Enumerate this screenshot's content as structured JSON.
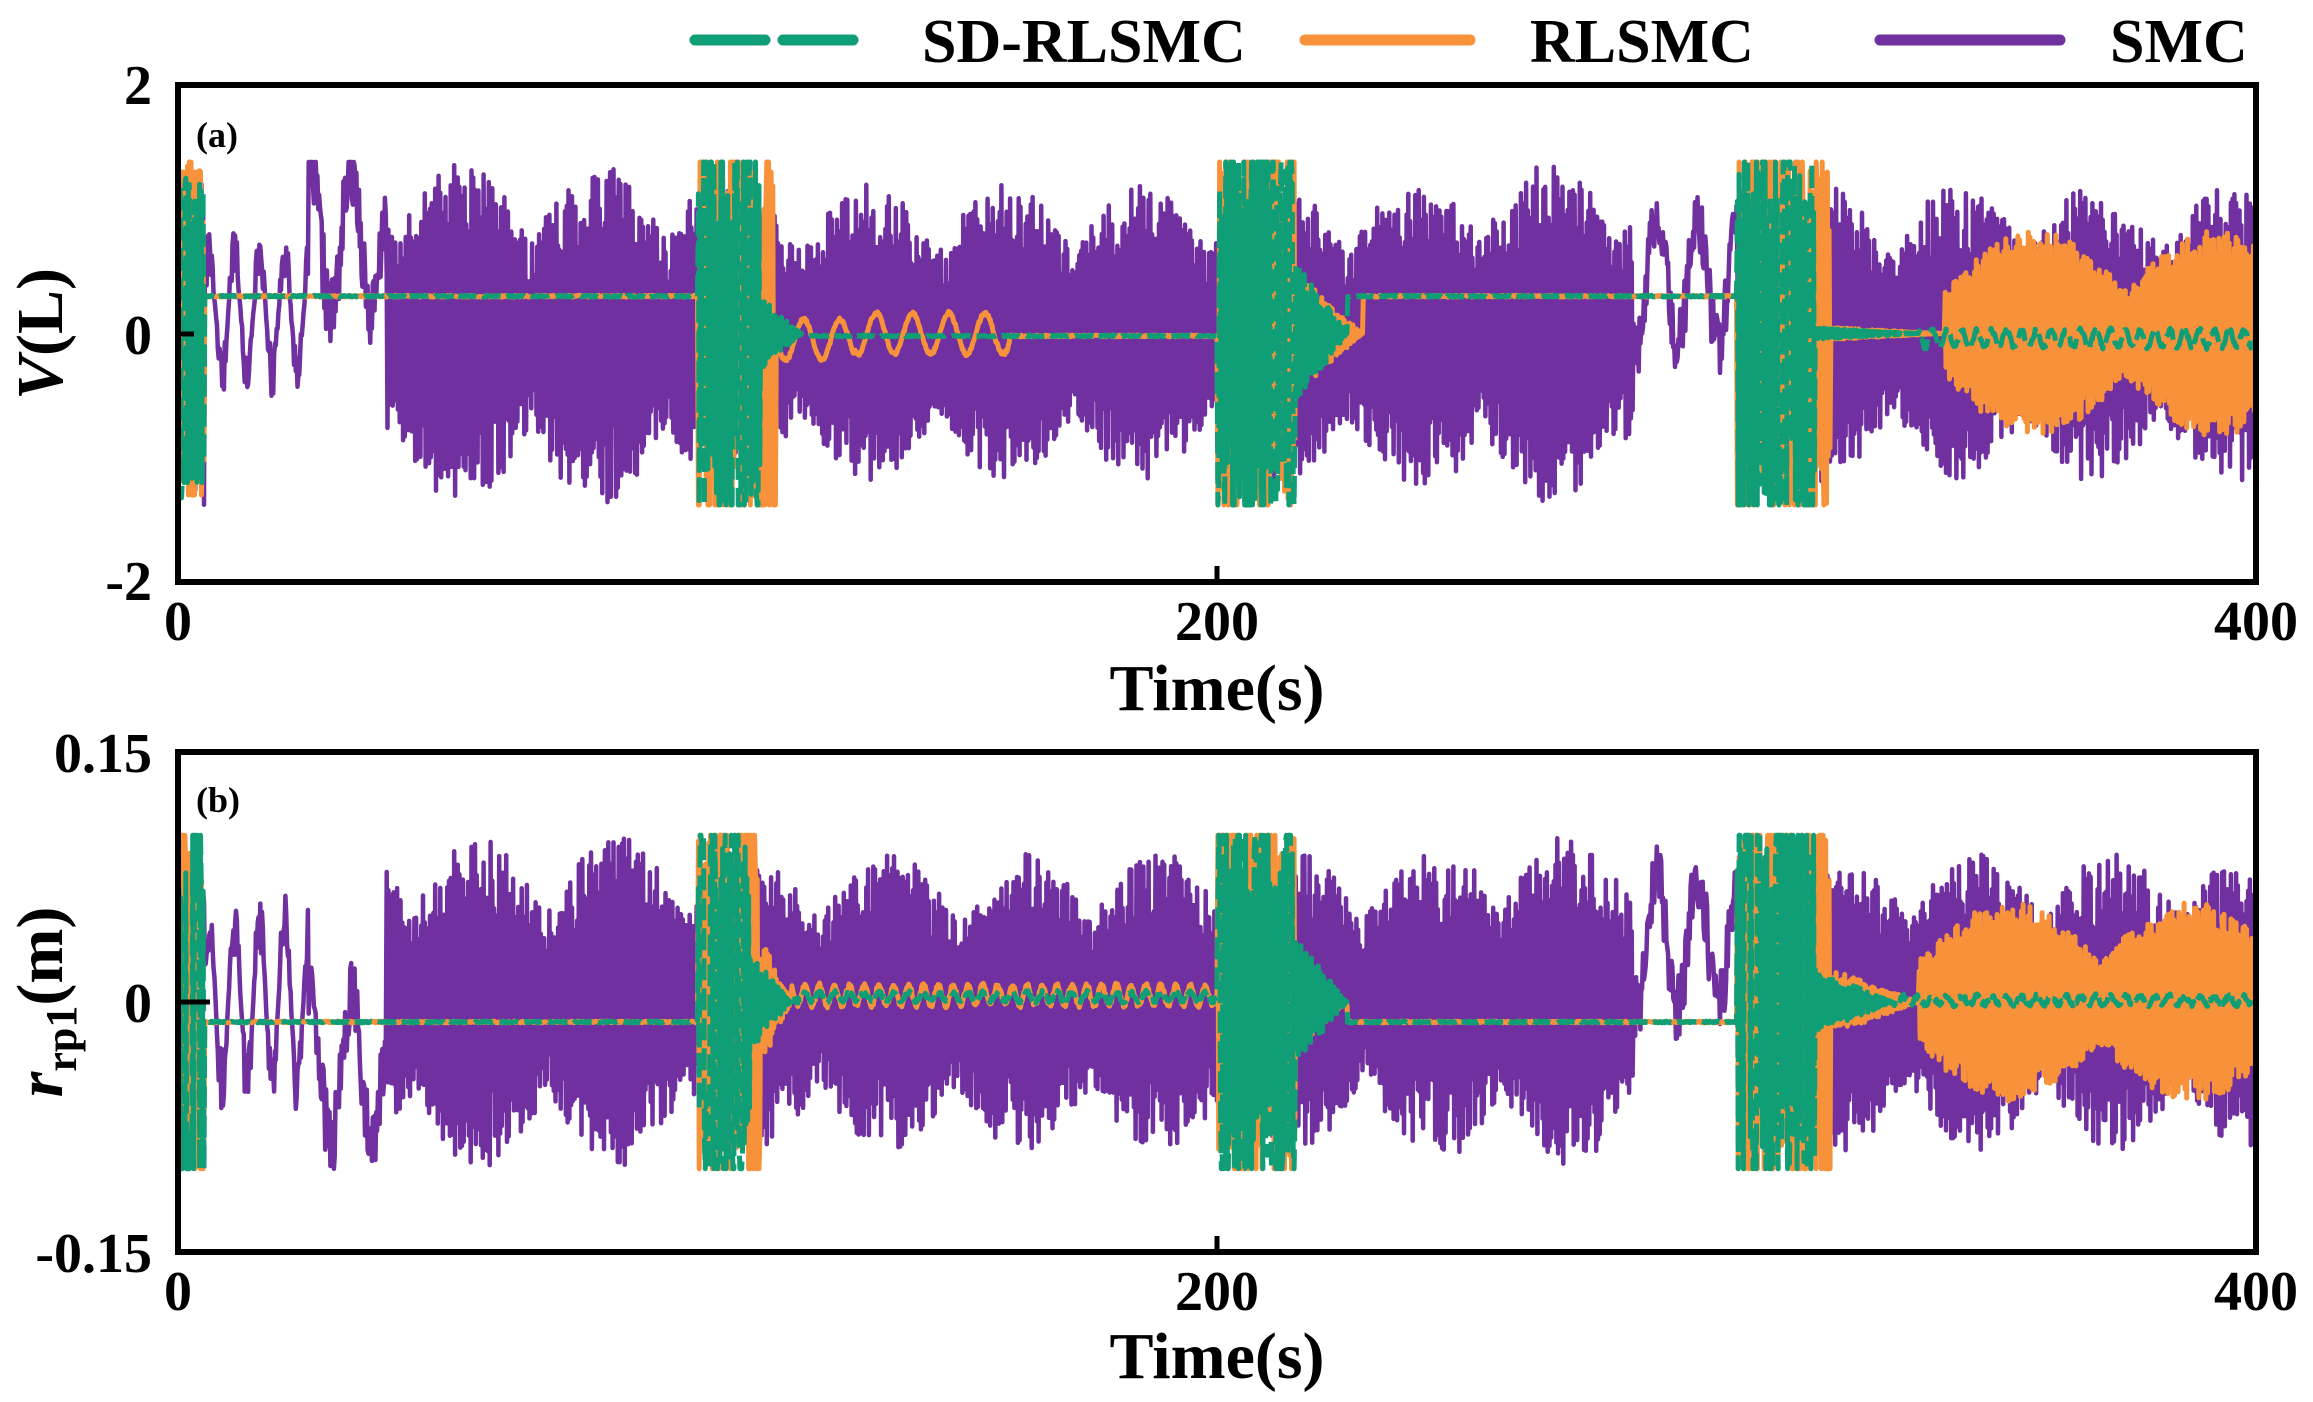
{
  "legend": [
    {
      "name": "SD-RLSMC",
      "color": "#109e76",
      "dash": true
    },
    {
      "name": "RLSMC",
      "color": "#f7923a",
      "dash": false
    },
    {
      "name": "SMC",
      "color": "#7030a0",
      "dash": false
    }
  ],
  "chart_data": [
    {
      "type": "line",
      "panel_label": "(a)",
      "xlabel": "Time(s)",
      "ylabel": "V",
      "ylabel_unit": "(L)",
      "xlim": [
        0,
        400
      ],
      "ylim": [
        -2,
        2
      ],
      "xticks": [
        0,
        200,
        400
      ],
      "xtick_labels": [
        "0",
        "200",
        "400"
      ],
      "yticks": [
        2,
        0,
        -2
      ],
      "ytick_labels": [
        "2",
        "0",
        "-2"
      ],
      "series": [
        {
          "name": "SMC",
          "color": "#7030a0",
          "amp": 1.38,
          "sat": 1.38,
          "segments": [
            [
              0,
              5,
              0.6,
              0.18,
              "osc"
            ],
            [
              5,
              25,
              0.7,
              0.12,
              "slow"
            ],
            [
              25,
              40,
              1.2,
              0.9,
              "slowbig"
            ],
            [
              40,
              100,
              1.38,
              1.7,
              "fast"
            ],
            [
              100,
              200,
              1.2,
              1.1,
              "fast"
            ],
            [
              200,
              245,
              1.25,
              1.2,
              "fast"
            ],
            [
              245,
              280,
              1.38,
              1.8,
              "fast"
            ],
            [
              280,
              300,
              1.0,
              0.5,
              "slowbig"
            ],
            [
              300,
              400,
              1.2,
              1.6,
              "fast"
            ]
          ]
        },
        {
          "name": "RLSMC",
          "color": "#f7923a",
          "amp": 1.38,
          "sat": 1.38,
          "segments": [
            [
              0,
              5,
              1.3,
              0.9,
              "osc"
            ],
            [
              5,
              100,
              0.3,
              0,
              "flat"
            ],
            [
              100,
              115,
              1.38,
              1.7,
              "osc"
            ],
            [
              115,
              130,
              -0.05,
              0.25,
              "sin"
            ],
            [
              130,
              160,
              0.0,
              0.2,
              "sin"
            ],
            [
              160,
              200,
              -0.02,
              0,
              "flat"
            ],
            [
              200,
              215,
              1.38,
              1.7,
              "osc"
            ],
            [
              215,
              228,
              0.5,
              1.2,
              "oscdecay"
            ],
            [
              228,
              300,
              0.3,
              0,
              "flat"
            ],
            [
              300,
              318,
              1.38,
              1.6,
              "osc"
            ],
            [
              318,
              340,
              0.05,
              0.6,
              "oscdecay"
            ],
            [
              340,
              400,
              0.0,
              1.5,
              "grow"
            ]
          ]
        },
        {
          "name": "SD-RLSMC",
          "color": "#109e76",
          "amp": 1.38,
          "sat": 1.38,
          "segments": [
            [
              0,
              5,
              1.2,
              0.9,
              "osc"
            ],
            [
              5,
              100,
              0.3,
              0,
              "flat"
            ],
            [
              100,
              112,
              1.38,
              1.7,
              "osc"
            ],
            [
              112,
              120,
              0.3,
              1.2,
              "oscdecay"
            ],
            [
              120,
              200,
              -0.02,
              0,
              "flat"
            ],
            [
              200,
              215,
              1.38,
              1.7,
              "osc"
            ],
            [
              215,
              225,
              0.6,
              1.2,
              "oscdecay"
            ],
            [
              225,
              300,
              0.3,
              0,
              "flat"
            ],
            [
              300,
              315,
              1.38,
              1.6,
              "osc"
            ],
            [
              315,
              335,
              0.05,
              0.6,
              "oscdecay"
            ],
            [
              335,
              400,
              -0.04,
              0.1,
              "small"
            ]
          ]
        }
      ]
    },
    {
      "type": "line",
      "panel_label": "(b)",
      "xlabel": "Time(s)",
      "ylabel": "r",
      "ylabel_sub": "rp1",
      "ylabel_unit": "(m)",
      "xlim": [
        0,
        400
      ],
      "ylim": [
        -0.15,
        0.15
      ],
      "xticks": [
        0,
        200,
        400
      ],
      "xtick_labels": [
        "0",
        "200",
        "400"
      ],
      "yticks": [
        0.15,
        0,
        -0.15
      ],
      "ytick_labels": [
        "0.15",
        "0",
        "-0.15"
      ],
      "series": [
        {
          "name": "SMC",
          "color": "#7030a0",
          "amp": 0.1,
          "sat": 0.1,
          "segments": [
            [
              0,
              5,
              0.06,
              0.0,
              "osc"
            ],
            [
              5,
              25,
              0.07,
              0.0,
              "slow"
            ],
            [
              25,
              40,
              0.09,
              -0.7,
              "slowbig"
            ],
            [
              40,
              100,
              0.1,
              1.6,
              "fast"
            ],
            [
              100,
              200,
              0.09,
              1.0,
              "fast"
            ],
            [
              200,
              245,
              0.09,
              1.2,
              "fast"
            ],
            [
              245,
              280,
              0.1,
              1.8,
              "fast"
            ],
            [
              280,
              300,
              0.08,
              0.6,
              "slowbig"
            ],
            [
              300,
              400,
              0.09,
              1.6,
              "fast"
            ]
          ]
        },
        {
          "name": "RLSMC",
          "color": "#f7923a",
          "amp": 0.1,
          "sat": 0.1,
          "segments": [
            [
              0,
              5,
              0.1,
              0.0,
              "osc"
            ],
            [
              5,
              100,
              -0.012,
              0,
              "flat"
            ],
            [
              100,
              112,
              0.1,
              1.7,
              "osc"
            ],
            [
              112,
              118,
              0.04,
              1.2,
              "oscdecay"
            ],
            [
              118,
              200,
              0.004,
              0.12,
              "small"
            ],
            [
              200,
              215,
              0.1,
              1.7,
              "osc"
            ],
            [
              215,
              225,
              0.03,
              1.2,
              "oscdecay"
            ],
            [
              225,
              300,
              -0.012,
              0,
              "flat"
            ],
            [
              300,
              318,
              0.1,
              1.6,
              "osc"
            ],
            [
              318,
              335,
              0.02,
              0.6,
              "oscdecay"
            ],
            [
              335,
              400,
              0.0,
              1.5,
              "grow"
            ]
          ]
        },
        {
          "name": "SD-RLSMC",
          "color": "#109e76",
          "amp": 0.1,
          "sat": 0.1,
          "segments": [
            [
              0,
              5,
              0.1,
              0.0,
              "osc"
            ],
            [
              5,
              100,
              -0.012,
              0,
              "flat"
            ],
            [
              100,
              110,
              0.1,
              1.7,
              "osc"
            ],
            [
              110,
              118,
              0.03,
              1.2,
              "oscdecay"
            ],
            [
              118,
              200,
              0.003,
              0.05,
              "small"
            ],
            [
              200,
              215,
              0.1,
              1.7,
              "osc"
            ],
            [
              215,
              225,
              0.04,
              1.2,
              "oscdecay"
            ],
            [
              225,
              300,
              -0.012,
              0,
              "flat"
            ],
            [
              300,
              315,
              0.1,
              1.6,
              "osc"
            ],
            [
              315,
              330,
              0.02,
              0.6,
              "oscdecay"
            ],
            [
              330,
              400,
              0.001,
              0.05,
              "small"
            ]
          ]
        }
      ]
    }
  ]
}
